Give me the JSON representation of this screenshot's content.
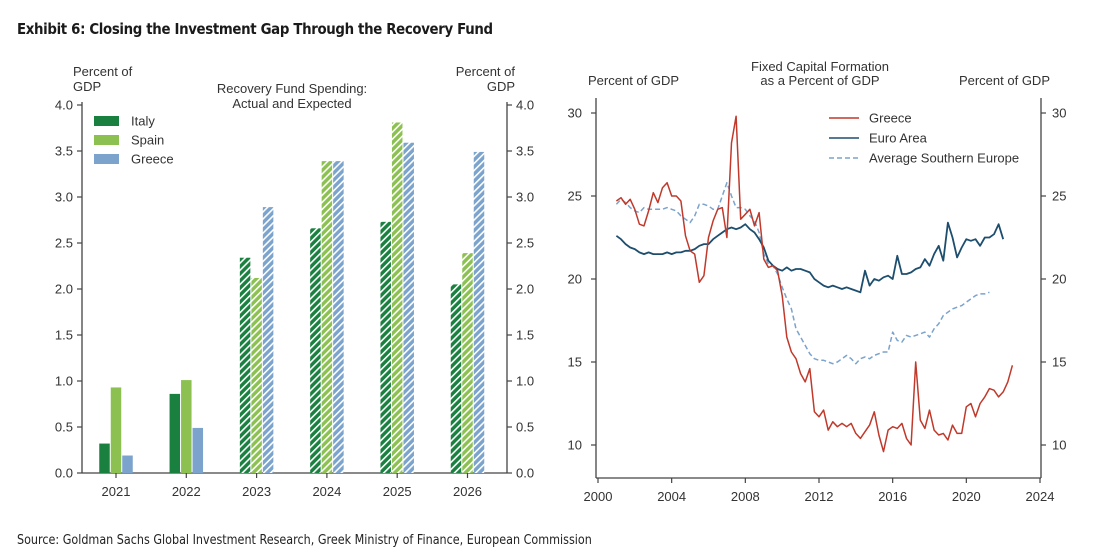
{
  "exhibit": {
    "title": "Exhibit 6: Closing the Investment Gap Through the Recovery Fund",
    "source": "Source: Goldman Sachs Global Investment Research, Greek Ministry of Finance, European Commission"
  },
  "chart_data": [
    {
      "type": "bar",
      "title": "Recovery Fund Spending:\nActual and Expected",
      "title_lines": [
        "Recovery Fund Spending:",
        "Actual and Expected"
      ],
      "ylabel_left": [
        "Percent of",
        "GDP"
      ],
      "ylabel_right": [
        "Percent of",
        "GDP"
      ],
      "xlabel": "",
      "ylim": [
        0,
        4.0
      ],
      "yticks": [
        0.0,
        0.5,
        1.0,
        1.5,
        2.0,
        2.5,
        3.0,
        3.5,
        4.0
      ],
      "ytick_labels": [
        "0.0",
        "0.5",
        "1.0",
        "1.5",
        "2.0",
        "2.5",
        "3.0",
        "3.5",
        "4.0"
      ],
      "categories": [
        "2021",
        "2022",
        "2023",
        "2024",
        "2025",
        "2026"
      ],
      "expected_from_category": "2023",
      "legend_position": "top-left",
      "series": [
        {
          "name": "Italy",
          "color": "#1a8040",
          "values": [
            0.32,
            0.86,
            2.34,
            2.66,
            2.73,
            2.05
          ]
        },
        {
          "name": "Spain",
          "color": "#8cc152",
          "values": [
            0.93,
            1.01,
            2.12,
            3.39,
            3.81,
            2.39
          ]
        },
        {
          "name": "Greece",
          "color": "#7ba3cc",
          "values": [
            0.19,
            0.49,
            2.89,
            3.39,
            3.59,
            3.49
          ]
        }
      ]
    },
    {
      "type": "line",
      "title": "Fixed Capital Formation\nas a Percent of GDP",
      "title_lines": [
        "Fixed Capital Formation",
        "as a Percent of GDP"
      ],
      "ylabel_left": "Percent of GDP",
      "ylabel_right": "Percent of GDP",
      "xlim": [
        2000,
        2024
      ],
      "ylim": [
        8,
        31
      ],
      "xticks": [
        2000,
        2004,
        2008,
        2012,
        2016,
        2020,
        2024
      ],
      "xtick_labels": [
        "2000",
        "2004",
        "2008",
        "2012",
        "2016",
        "2020",
        "2024"
      ],
      "yticks": [
        10,
        15,
        20,
        25,
        30
      ],
      "ytick_labels": [
        "10",
        "15",
        "20",
        "25",
        "30"
      ],
      "legend_position": "top-right",
      "x_start": 2001.0,
      "x_step": 0.25,
      "series": [
        {
          "name": "Greece",
          "color": "#c0392b",
          "style": "solid",
          "values": [
            24.7,
            24.9,
            24.5,
            24.8,
            24.2,
            23.3,
            23.2,
            24.1,
            25.2,
            24.6,
            25.5,
            25.8,
            25.0,
            25.0,
            24.7,
            22.6,
            21.7,
            21.5,
            19.8,
            20.2,
            22.5,
            23.5,
            24.2,
            24.3,
            22.5,
            28.2,
            29.8,
            23.6,
            23.9,
            24.2,
            23.2,
            24.0,
            21.2,
            20.7,
            20.8,
            20.5,
            19.0,
            16.5,
            15.6,
            15.2,
            14.3,
            13.8,
            14.6,
            12.0,
            11.7,
            12.1,
            10.9,
            11.4,
            11.1,
            11.3,
            11.1,
            11.3,
            10.7,
            10.4,
            10.8,
            11.2,
            12.0,
            10.6,
            9.6,
            10.9,
            11.1,
            11.0,
            11.3,
            10.4,
            10.0,
            15.0,
            11.5,
            11.0,
            12.1,
            10.9,
            10.6,
            10.7,
            10.3,
            11.2,
            10.7,
            10.7,
            12.3,
            12.5,
            11.7,
            12.5,
            12.9,
            13.4,
            13.3,
            12.9,
            13.2,
            13.8,
            14.8
          ]
        },
        {
          "name": "Euro Area",
          "color": "#1d4e6e",
          "style": "solid",
          "values": [
            22.6,
            22.4,
            22.1,
            21.9,
            21.8,
            21.6,
            21.5,
            21.6,
            21.5,
            21.5,
            21.5,
            21.6,
            21.5,
            21.6,
            21.6,
            21.7,
            21.7,
            21.8,
            22.0,
            22.1,
            22.1,
            22.4,
            22.6,
            22.8,
            23.0,
            23.1,
            23.0,
            23.1,
            23.3,
            23.0,
            22.8,
            22.4,
            21.9,
            21.1,
            20.8,
            20.6,
            20.5,
            20.7,
            20.5,
            20.6,
            20.6,
            20.5,
            20.4,
            20.0,
            19.8,
            19.6,
            19.5,
            19.6,
            19.5,
            19.4,
            19.5,
            19.4,
            19.3,
            19.2,
            20.5,
            19.6,
            20.0,
            19.9,
            20.1,
            20.2,
            20.0,
            21.4,
            20.3,
            20.3,
            20.4,
            20.6,
            20.7,
            21.2,
            20.8,
            21.5,
            22.0,
            21.1,
            23.4,
            22.5,
            21.3,
            21.9,
            22.4,
            22.3,
            22.4,
            22.0,
            22.5,
            22.5,
            22.7,
            23.3,
            22.4
          ]
        },
        {
          "name": "Average Southern Europe",
          "color": "#7ba3cc",
          "style": "dashed",
          "values": [
            24.5,
            24.8,
            24.6,
            24.3,
            24.1,
            24.0,
            24.3,
            24.2,
            24.2,
            24.2,
            24.2,
            24.3,
            24.2,
            24.1,
            23.8,
            23.6,
            23.4,
            23.8,
            24.5,
            24.5,
            24.4,
            24.2,
            24.2,
            25.0,
            25.8,
            25.0,
            24.3,
            24.3,
            24.2,
            23.8,
            23.5,
            22.8,
            21.5,
            20.9,
            20.8,
            20.3,
            19.5,
            18.8,
            18.2,
            17.0,
            16.5,
            16.0,
            15.5,
            15.2,
            15.1,
            15.1,
            15.0,
            14.9,
            15.0,
            15.2,
            15.4,
            15.2,
            14.9,
            15.2,
            15.3,
            15.2,
            15.4,
            15.5,
            15.6,
            15.6,
            16.8,
            16.3,
            16.2,
            16.6,
            16.5,
            16.6,
            16.7,
            16.8,
            16.5,
            17.0,
            17.3,
            17.8,
            18.0,
            18.2,
            18.3,
            18.4,
            18.6,
            18.8,
            19.0,
            19.1,
            19.1,
            19.2
          ]
        }
      ]
    }
  ]
}
